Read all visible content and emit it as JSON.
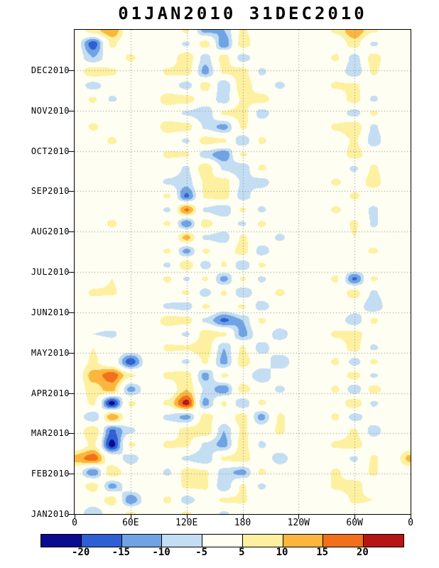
{
  "chart_data": {
    "type": "heatmap",
    "subtype": "hovmoller-longitude-time",
    "title": "01JAN2010 31DEC2010",
    "x_axis": {
      "ticks": [
        "0",
        "60E",
        "120E",
        "180",
        "120W",
        "60W",
        "0"
      ],
      "lon_degrees": [
        0,
        60,
        120,
        180,
        240,
        300,
        360
      ]
    },
    "y_axis": {
      "ticks_bottom_to_top": [
        "JAN2010",
        "FEB2010",
        "MAR2010",
        "APR2010",
        "MAY2010",
        "JUN2010",
        "JUL2010",
        "AUG2010",
        "SEP2010",
        "OCT2010",
        "NOV2010",
        "DEC2010"
      ]
    },
    "colorbar": {
      "levels": [
        -20,
        -15,
        -10,
        -5,
        5,
        10,
        15,
        20
      ],
      "boundary_labels": [
        "-20",
        "-15",
        "-10",
        "-5",
        "5",
        "10",
        "15",
        "20"
      ],
      "colors": [
        "#0b0b8f",
        "#2f5fd4",
        "#6fa3e3",
        "#c3ddf2",
        "#fffef2",
        "#fdf0a0",
        "#fcb63d",
        "#f2701b",
        "#b81414"
      ]
    },
    "grid": {
      "lon_step_deg": 20,
      "rows_order": "top (31DEC2010) to bottom (01JAN2010)",
      "values": [
        [
          0,
          8,
          14,
          0,
          0,
          0,
          6,
          -12,
          -10,
          6,
          0,
          0,
          0,
          0,
          6,
          14,
          6,
          0
        ],
        [
          0,
          -18,
          6,
          0,
          0,
          0,
          -6,
          8,
          -14,
          8,
          0,
          0,
          0,
          0,
          0,
          8,
          -6,
          0
        ],
        [
          0,
          -10,
          0,
          6,
          0,
          0,
          10,
          -8,
          8,
          -8,
          0,
          0,
          0,
          0,
          6,
          -8,
          8,
          0
        ],
        [
          0,
          10,
          6,
          0,
          0,
          6,
          8,
          -12,
          6,
          8,
          -6,
          0,
          0,
          0,
          0,
          -10,
          6,
          0
        ],
        [
          0,
          -8,
          0,
          0,
          0,
          0,
          -8,
          8,
          -10,
          10,
          0,
          -6,
          0,
          0,
          6,
          6,
          0,
          0
        ],
        [
          0,
          6,
          -6,
          0,
          0,
          8,
          8,
          0,
          -8,
          6,
          8,
          0,
          0,
          0,
          0,
          8,
          -6,
          0
        ],
        [
          0,
          0,
          5,
          0,
          0,
          0,
          -6,
          -10,
          6,
          8,
          -8,
          0,
          0,
          0,
          0,
          -8,
          6,
          0
        ],
        [
          0,
          6,
          0,
          0,
          0,
          8,
          8,
          -6,
          -12,
          6,
          0,
          0,
          0,
          0,
          6,
          10,
          -6,
          0
        ],
        [
          0,
          0,
          6,
          0,
          0,
          0,
          -6,
          8,
          6,
          -10,
          6,
          0,
          0,
          0,
          0,
          6,
          -8,
          0
        ],
        [
          0,
          0,
          0,
          5,
          0,
          6,
          6,
          -8,
          -14,
          6,
          0,
          0,
          0,
          0,
          0,
          8,
          0,
          0
        ],
        [
          0,
          5,
          0,
          0,
          0,
          0,
          -6,
          10,
          -6,
          -10,
          6,
          0,
          0,
          0,
          0,
          -6,
          6,
          0
        ],
        [
          0,
          0,
          5,
          0,
          0,
          -6,
          -8,
          6,
          8,
          -6,
          -8,
          0,
          0,
          0,
          6,
          0,
          8,
          0
        ],
        [
          0,
          0,
          0,
          0,
          0,
          6,
          -16,
          6,
          8,
          -8,
          0,
          0,
          0,
          0,
          0,
          6,
          0,
          0
        ],
        [
          0,
          5,
          0,
          0,
          0,
          -6,
          16,
          -6,
          -10,
          6,
          -6,
          0,
          0,
          0,
          6,
          0,
          -6,
          0
        ],
        [
          0,
          0,
          6,
          0,
          0,
          6,
          -14,
          8,
          0,
          -6,
          6,
          0,
          0,
          0,
          0,
          6,
          -6,
          0
        ],
        [
          0,
          0,
          0,
          0,
          0,
          -5,
          12,
          -6,
          -8,
          6,
          0,
          -6,
          0,
          0,
          0,
          5,
          0,
          0
        ],
        [
          0,
          5,
          5,
          0,
          0,
          6,
          -12,
          6,
          0,
          8,
          -8,
          0,
          0,
          0,
          5,
          0,
          6,
          0
        ],
        [
          0,
          0,
          0,
          5,
          0,
          -6,
          10,
          -8,
          6,
          -10,
          6,
          0,
          0,
          0,
          0,
          5,
          -5,
          0
        ],
        [
          0,
          0,
          5,
          0,
          0,
          6,
          -6,
          6,
          -12,
          6,
          -6,
          0,
          0,
          0,
          6,
          -16,
          6,
          0
        ],
        [
          0,
          6,
          6,
          0,
          0,
          0,
          6,
          -8,
          6,
          -10,
          0,
          6,
          0,
          0,
          0,
          8,
          -6,
          0
        ],
        [
          0,
          0,
          -5,
          0,
          0,
          -6,
          -8,
          6,
          0,
          6,
          -8,
          0,
          0,
          0,
          5,
          0,
          -10,
          0
        ],
        [
          0,
          0,
          0,
          0,
          0,
          8,
          8,
          -6,
          -16,
          -10,
          6,
          0,
          0,
          0,
          0,
          -10,
          6,
          0
        ],
        [
          0,
          -5,
          -6,
          0,
          0,
          0,
          -6,
          8,
          6,
          -12,
          0,
          -8,
          0,
          0,
          6,
          8,
          0,
          0
        ],
        [
          0,
          5,
          0,
          0,
          0,
          6,
          6,
          10,
          -10,
          6,
          -8,
          0,
          0,
          0,
          0,
          8,
          -6,
          0
        ],
        [
          0,
          6,
          0,
          -18,
          0,
          0,
          -6,
          6,
          -12,
          8,
          0,
          -10,
          0,
          0,
          6,
          -8,
          6,
          0
        ],
        [
          0,
          12,
          18,
          6,
          0,
          6,
          8,
          -12,
          6,
          0,
          -10,
          0,
          0,
          0,
          0,
          8,
          -6,
          0
        ],
        [
          0,
          8,
          12,
          -12,
          0,
          0,
          10,
          -6,
          -14,
          8,
          0,
          -6,
          0,
          0,
          6,
          -10,
          8,
          0
        ],
        [
          0,
          6,
          -22,
          6,
          0,
          6,
          22,
          -12,
          6,
          -10,
          6,
          0,
          0,
          0,
          0,
          10,
          -6,
          0
        ],
        [
          0,
          -10,
          14,
          0,
          0,
          -6,
          -12,
          8,
          0,
          8,
          -12,
          6,
          0,
          0,
          6,
          -8,
          0,
          0
        ],
        [
          0,
          10,
          -16,
          -6,
          0,
          0,
          8,
          10,
          -10,
          6,
          0,
          6,
          0,
          0,
          0,
          6,
          -8,
          0
        ],
        [
          0,
          6,
          -22,
          6,
          0,
          6,
          6,
          -6,
          -12,
          8,
          -6,
          0,
          0,
          0,
          6,
          8,
          0,
          0
        ],
        [
          12,
          18,
          0,
          -8,
          0,
          0,
          -6,
          -10,
          6,
          8,
          0,
          -8,
          0,
          0,
          0,
          -6,
          6,
          0
        ],
        [
          0,
          -14,
          10,
          0,
          0,
          -6,
          8,
          6,
          -8,
          -12,
          6,
          0,
          0,
          0,
          6,
          0,
          6,
          0
        ],
        [
          0,
          8,
          -12,
          0,
          0,
          0,
          6,
          6,
          -10,
          6,
          -6,
          0,
          0,
          0,
          6,
          8,
          0,
          0
        ],
        [
          0,
          0,
          8,
          -14,
          0,
          6,
          -8,
          0,
          6,
          6,
          0,
          0,
          0,
          0,
          0,
          6,
          5,
          0
        ],
        [
          0,
          -10,
          0,
          6,
          0,
          0,
          6,
          0,
          -6,
          0,
          0,
          0,
          0,
          0,
          5,
          0,
          0,
          0
        ]
      ]
    }
  }
}
